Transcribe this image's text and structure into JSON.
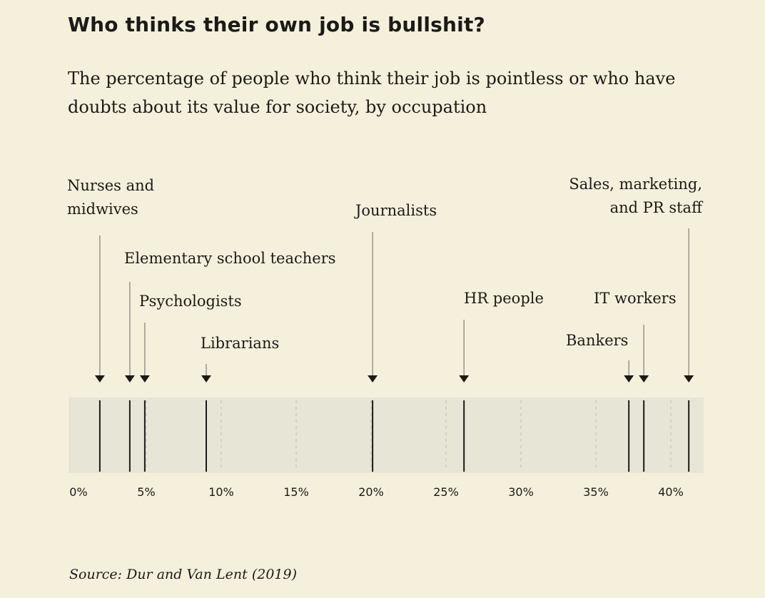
{
  "chart_data": {
    "type": "strip",
    "title": "Who thinks their own job is bullshit?",
    "subtitle": "The percentage of people who think their job is pointless or who have doubts about its value for society, by occupation",
    "xlabel": "",
    "xlim": [
      0,
      42
    ],
    "x_ticks": [
      "0%",
      "5%",
      "10%",
      "15%",
      "20%",
      "25%",
      "30%",
      "35%",
      "40%"
    ],
    "x_tick_values": [
      0,
      5,
      10,
      15,
      20,
      25,
      30,
      35,
      40
    ],
    "grid": "dashed vertical at each 5%",
    "points": [
      {
        "label": "Nurses and\nmidwives",
        "value": 1.9
      },
      {
        "label": "Elementary school teachers",
        "value": 3.9
      },
      {
        "label": "Psychologists",
        "value": 4.9
      },
      {
        "label": "Librarians",
        "value": 9.0
      },
      {
        "label": "Journalists",
        "value": 20.1
      },
      {
        "label": "HR people",
        "value": 26.2
      },
      {
        "label": "Bankers",
        "value": 37.2
      },
      {
        "label": "IT workers",
        "value": 38.2
      },
      {
        "label": "Sales, marketing,\nand PR staff",
        "value": 41.2
      }
    ],
    "source": "Source: Dur and Van Lent (2019)",
    "colors": {
      "background": "#f4f0dc",
      "band": "#e7e5d6",
      "marks": "#1c1a17",
      "grid": "#c8c4b4"
    }
  }
}
